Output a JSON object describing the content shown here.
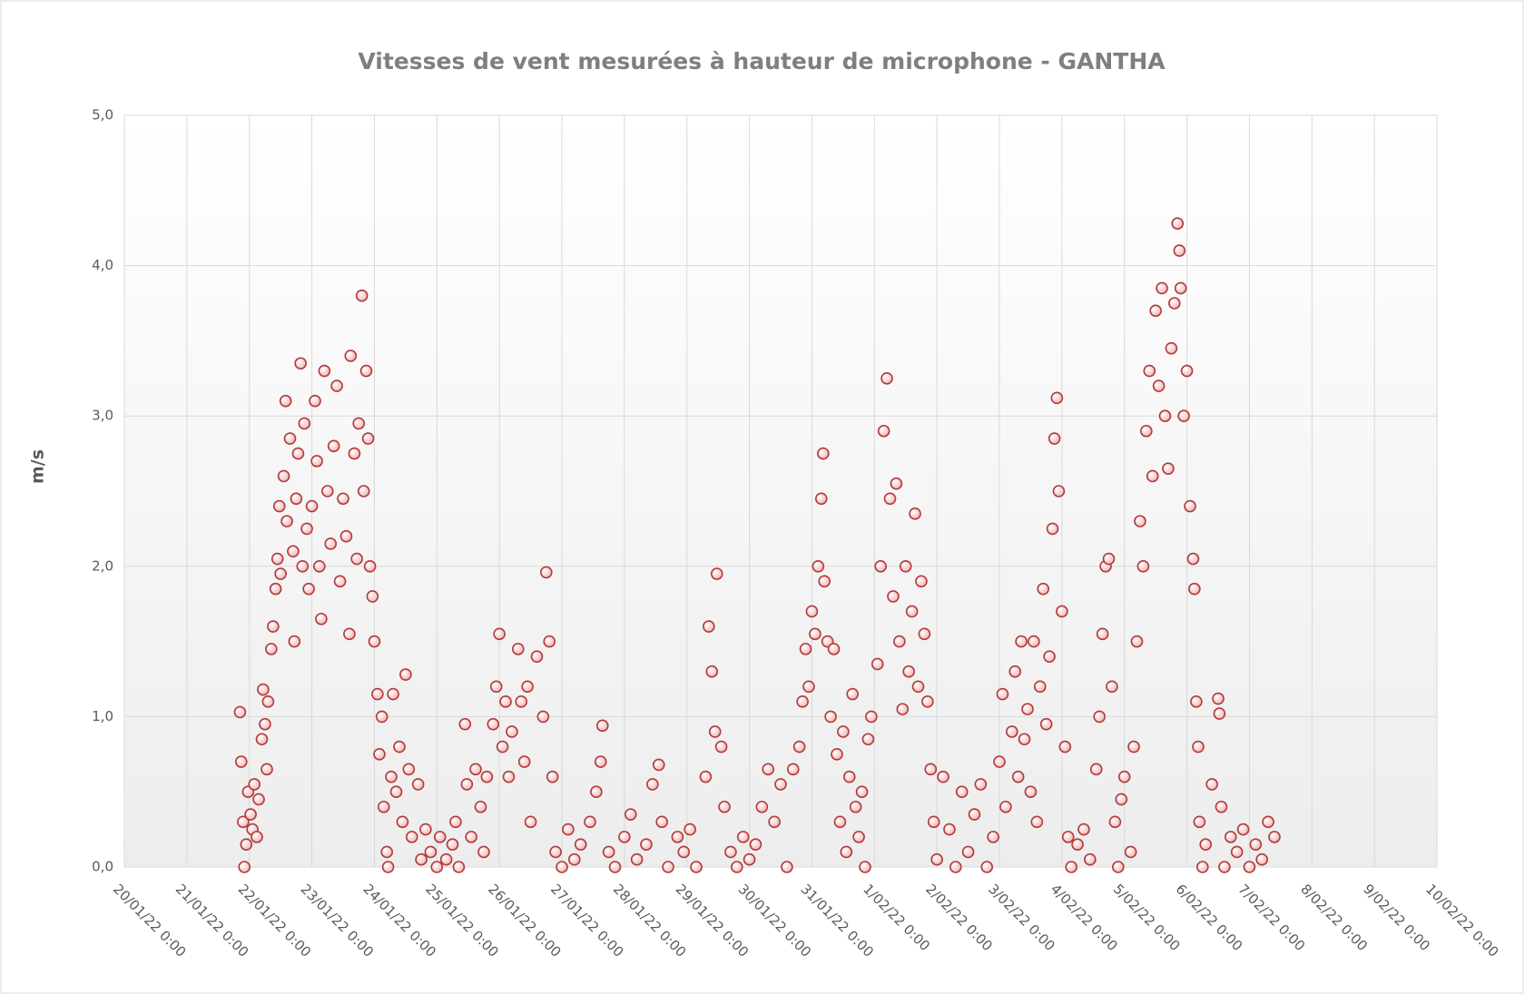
{
  "chart_data": {
    "type": "scatter",
    "title": "Vitesses de vent mesurées à hauteur de microphone - GANTHA",
    "y_label": "m/s",
    "xlim": [
      44581,
      44602
    ],
    "xticks": [
      {
        "value": 44581,
        "label": "20/01/22 0:00"
      },
      {
        "value": 44582,
        "label": "21/01/22 0:00"
      },
      {
        "value": 44583,
        "label": "22/01/22 0:00"
      },
      {
        "value": 44584,
        "label": "23/01/22 0:00"
      },
      {
        "value": 44585,
        "label": "24/01/22 0:00"
      },
      {
        "value": 44586,
        "label": "25/01/22 0:00"
      },
      {
        "value": 44587,
        "label": "26/01/22 0:00"
      },
      {
        "value": 44588,
        "label": "27/01/22 0:00"
      },
      {
        "value": 44589,
        "label": "28/01/22 0:00"
      },
      {
        "value": 44590,
        "label": "29/01/22 0:00"
      },
      {
        "value": 44591,
        "label": "30/01/22 0:00"
      },
      {
        "value": 44592,
        "label": "31/01/22 0:00"
      },
      {
        "value": 44593,
        "label": "1/02/22 0:00"
      },
      {
        "value": 44594,
        "label": "2/02/22 0:00"
      },
      {
        "value": 44595,
        "label": "3/02/22 0:00"
      },
      {
        "value": 44596,
        "label": "4/02/22 0:00"
      },
      {
        "value": 44597,
        "label": "5/02/22 0:00"
      },
      {
        "value": 44598,
        "label": "6/02/22 0:00"
      },
      {
        "value": 44599,
        "label": "7/02/22 0:00"
      },
      {
        "value": 44600,
        "label": "8/02/22 0:00"
      },
      {
        "value": 44601,
        "label": "9/02/22 0:00"
      },
      {
        "value": 44602,
        "label": "10/02/22 0:00"
      }
    ],
    "ylim": [
      0,
      5
    ],
    "yticks": [
      {
        "value": 0,
        "label": "0,0"
      },
      {
        "value": 1,
        "label": "1,0"
      },
      {
        "value": 2,
        "label": "2,0"
      },
      {
        "value": 3,
        "label": "3,0"
      },
      {
        "value": 4,
        "label": "4,0"
      },
      {
        "value": 5,
        "label": "5,0"
      }
    ],
    "grid": true,
    "series": [
      {
        "color": "#b23b3b",
        "x": [
          44582.85,
          44582.87,
          44582.9,
          44582.92,
          44582.95,
          44582.98,
          44583.02,
          44583.05,
          44583.08,
          44583.12,
          44583.15,
          44583.2,
          44583.22,
          44583.25,
          44583.28,
          44583.3,
          44583.35,
          44583.38,
          44583.42,
          44583.45,
          44583.48,
          44583.5,
          44583.55,
          44583.58,
          44583.6,
          44583.65,
          44583.7,
          44583.72,
          44583.75,
          44583.78,
          44583.82,
          44583.85,
          44583.88,
          44583.92,
          44583.95,
          44584.0,
          44584.05,
          44584.08,
          44584.12,
          44584.15,
          44584.2,
          44584.25,
          44584.3,
          44584.35,
          44584.4,
          44584.45,
          44584.5,
          44584.55,
          44584.6,
          44584.62,
          44584.68,
          44584.72,
          44584.75,
          44584.8,
          44584.83,
          44584.87,
          44584.9,
          44584.93,
          44584.97,
          44585.0,
          44585.05,
          44585.08,
          44585.12,
          44585.15,
          44585.2,
          44585.22,
          44585.27,
          44585.3,
          44585.35,
          44585.4,
          44585.45,
          44585.5,
          44585.55,
          44585.6,
          44585.7,
          44585.75,
          44585.82,
          44585.9,
          44586.0,
          44586.05,
          44586.15,
          44586.25,
          44586.3,
          44586.35,
          44586.45,
          44586.48,
          44586.55,
          44586.62,
          44586.7,
          44586.75,
          44586.8,
          44586.9,
          44586.95,
          44587.0,
          44587.05,
          44587.1,
          44587.15,
          44587.2,
          44587.3,
          44587.35,
          44587.4,
          44587.45,
          44587.5,
          44587.6,
          44587.7,
          44587.75,
          44587.8,
          44587.85,
          44587.9,
          44588.0,
          44588.1,
          44588.2,
          44588.3,
          44588.45,
          44588.55,
          44588.62,
          44588.65,
          44588.75,
          44588.85,
          44589.0,
          44589.1,
          44589.2,
          44589.35,
          44589.45,
          44589.55,
          44589.6,
          44589.7,
          44589.85,
          44589.95,
          44590.05,
          44590.15,
          44590.3,
          44590.35,
          44590.4,
          44590.45,
          44590.48,
          44590.55,
          44590.6,
          44590.7,
          44590.8,
          44590.9,
          44591.0,
          44591.1,
          44591.2,
          44591.3,
          44591.4,
          44591.5,
          44591.6,
          44591.7,
          44591.8,
          44591.85,
          44591.9,
          44591.95,
          44592.0,
          44592.05,
          44592.1,
          44592.15,
          44592.18,
          44592.2,
          44592.25,
          44592.3,
          44592.35,
          44592.4,
          44592.45,
          44592.5,
          44592.55,
          44592.6,
          44592.65,
          44592.7,
          44592.75,
          44592.8,
          44592.85,
          44592.9,
          44592.95,
          44593.05,
          44593.1,
          44593.15,
          44593.2,
          44593.25,
          44593.3,
          44593.35,
          44593.4,
          44593.45,
          44593.5,
          44593.55,
          44593.6,
          44593.65,
          44593.7,
          44593.75,
          44593.8,
          44593.85,
          44593.9,
          44593.95,
          44594.0,
          44594.1,
          44594.2,
          44594.3,
          44594.4,
          44594.5,
          44594.6,
          44594.7,
          44594.8,
          44594.9,
          44595.0,
          44595.05,
          44595.1,
          44595.2,
          44595.25,
          44595.3,
          44595.35,
          44595.4,
          44595.45,
          44595.5,
          44595.55,
          44595.6,
          44595.65,
          44595.7,
          44595.75,
          44595.8,
          44595.85,
          44595.88,
          44595.92,
          44595.95,
          44596.0,
          44596.05,
          44596.1,
          44596.15,
          44596.25,
          44596.35,
          44596.45,
          44596.55,
          44596.6,
          44596.65,
          44596.7,
          44596.75,
          44596.8,
          44596.85,
          44596.9,
          44596.95,
          44597.0,
          44597.1,
          44597.15,
          44597.2,
          44597.25,
          44597.3,
          44597.35,
          44597.4,
          44597.45,
          44597.5,
          44597.55,
          44597.6,
          44597.65,
          44597.7,
          44597.75,
          44597.8,
          44597.85,
          44597.88,
          44597.9,
          44597.95,
          44598.0,
          44598.05,
          44598.1,
          44598.12,
          44598.15,
          44598.18,
          44598.2,
          44598.25,
          44598.3,
          44598.4,
          44598.5,
          44598.52,
          44598.55,
          44598.6,
          44598.7,
          44598.8,
          44598.9,
          44599.0,
          44599.1,
          44599.2,
          44599.3,
          44599.4
        ],
        "values": [
          1.03,
          0.7,
          0.3,
          0,
          0.15,
          0.5,
          0.35,
          0.25,
          0.55,
          0.2,
          0.45,
          0.85,
          1.18,
          0.95,
          0.65,
          1.1,
          1.45,
          1.6,
          1.85,
          2.05,
          2.4,
          1.95,
          2.6,
          3.1,
          2.3,
          2.85,
          2.1,
          1.5,
          2.45,
          2.75,
          3.35,
          2.0,
          2.95,
          2.25,
          1.85,
          2.4,
          3.1,
          2.7,
          2.0,
          1.65,
          3.3,
          2.5,
          2.15,
          2.8,
          3.2,
          1.9,
          2.45,
          2.2,
          1.55,
          3.4,
          2.75,
          2.05,
          2.95,
          3.8,
          2.5,
          3.3,
          2.85,
          2.0,
          1.8,
          1.5,
          1.15,
          0.75,
          1.0,
          0.4,
          0.1,
          0,
          0.6,
          1.15,
          0.5,
          0.8,
          0.3,
          1.28,
          0.65,
          0.2,
          0.55,
          0.05,
          0.25,
          0.1,
          0,
          0.2,
          0.05,
          0.15,
          0.3,
          0,
          0.95,
          0.55,
          0.2,
          0.65,
          0.4,
          0.1,
          0.6,
          0.95,
          1.2,
          1.55,
          0.8,
          1.1,
          0.6,
          0.9,
          1.45,
          1.1,
          0.7,
          1.2,
          0.3,
          1.4,
          1.0,
          1.96,
          1.5,
          0.6,
          0.1,
          0,
          0.25,
          0.05,
          0.15,
          0.3,
          0.5,
          0.7,
          0.94,
          0.1,
          0,
          0.2,
          0.35,
          0.05,
          0.15,
          0.55,
          0.68,
          0.3,
          0,
          0.2,
          0.1,
          0.25,
          0,
          0.6,
          1.6,
          1.3,
          0.9,
          1.95,
          0.8,
          0.4,
          0.1,
          0,
          0.2,
          0.05,
          0.15,
          0.4,
          0.65,
          0.3,
          0.55,
          0,
          0.65,
          0.8,
          1.1,
          1.45,
          1.2,
          1.7,
          1.55,
          2.0,
          2.45,
          2.75,
          1.9,
          1.5,
          1.0,
          1.45,
          0.75,
          0.3,
          0.9,
          0.1,
          0.6,
          1.15,
          0.4,
          0.2,
          0.5,
          0,
          0.85,
          1.0,
          1.35,
          2.0,
          2.9,
          3.25,
          2.45,
          1.8,
          2.55,
          1.5,
          1.05,
          2.0,
          1.3,
          1.7,
          2.35,
          1.2,
          1.9,
          1.55,
          1.1,
          0.65,
          0.3,
          0.05,
          0.6,
          0.25,
          0,
          0.5,
          0.1,
          0.35,
          0.55,
          0,
          0.2,
          0.7,
          1.15,
          0.4,
          0.9,
          1.3,
          0.6,
          1.5,
          0.85,
          1.05,
          0.5,
          1.5,
          0.3,
          1.2,
          1.85,
          0.95,
          1.4,
          2.25,
          2.85,
          3.12,
          2.5,
          1.7,
          0.8,
          0.2,
          0,
          0.15,
          0.25,
          0.05,
          0.65,
          1.0,
          1.55,
          2.0,
          2.05,
          1.2,
          0.3,
          0,
          0.45,
          0.6,
          0.1,
          0.8,
          1.5,
          2.3,
          2.0,
          2.9,
          3.3,
          2.6,
          3.7,
          3.2,
          3.85,
          3.0,
          2.65,
          3.45,
          3.75,
          4.28,
          4.1,
          3.85,
          3.0,
          3.3,
          2.4,
          2.05,
          1.85,
          1.1,
          0.8,
          0.3,
          0,
          0.15,
          0.55,
          1.12,
          1.02,
          0.4,
          0,
          0.2,
          0.1,
          0.25,
          0,
          0.15,
          0.05,
          0.3,
          0.2
        ]
      }
    ]
  }
}
